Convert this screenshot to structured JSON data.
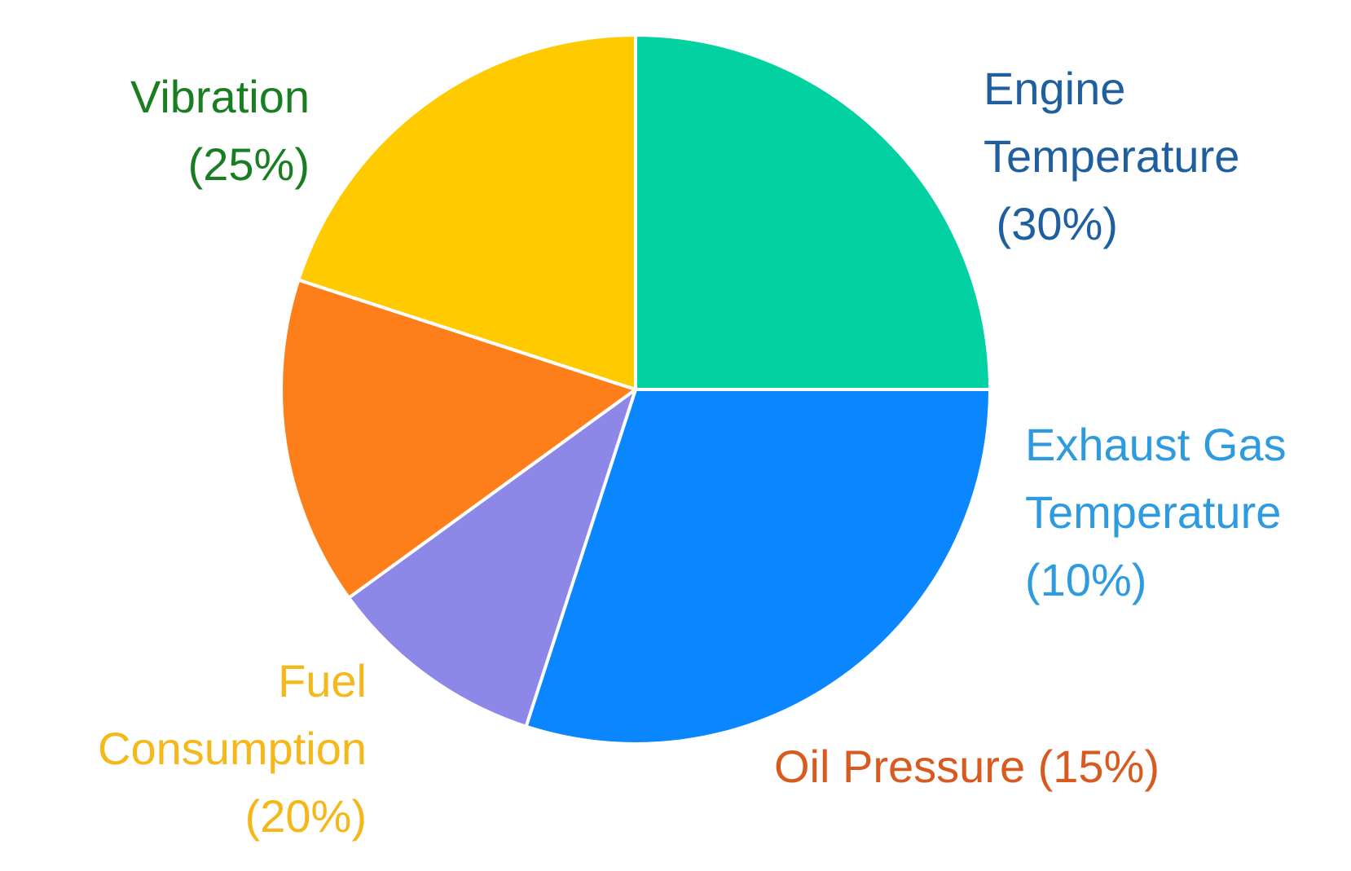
{
  "chart_data": {
    "type": "pie",
    "slices": [
      {
        "name": "Engine Temperature",
        "value": 30,
        "label_lines": [
          "Engine",
          "Temperature",
          " (30%)"
        ],
        "color": "#0A87FE",
        "label_color": "#1F5FA0"
      },
      {
        "name": "Exhaust Gas Temperature",
        "value": 10,
        "label_lines": [
          "Exhaust Gas",
          "Temperature",
          "(10%)"
        ],
        "color": "#8D88E8",
        "label_color": "#2E9BE0"
      },
      {
        "name": "Oil Pressure",
        "value": 15,
        "label_lines": [
          "Oil Pressure (15%)"
        ],
        "color": "#FE7F1A",
        "label_color": "#D85A1F"
      },
      {
        "name": "Fuel Consumption",
        "value": 20,
        "label_lines": [
          "Fuel",
          "Consumption",
          "(20%)"
        ],
        "color": "#FFCB00",
        "label_color": "#F4B81B"
      },
      {
        "name": "Vibration",
        "value": 25,
        "label_lines": [
          "Vibration",
          "(25%)"
        ],
        "color": "#02D1A1",
        "label_color": "#197D22"
      }
    ],
    "start_angle_deg": 0,
    "direction": "clockwise"
  }
}
